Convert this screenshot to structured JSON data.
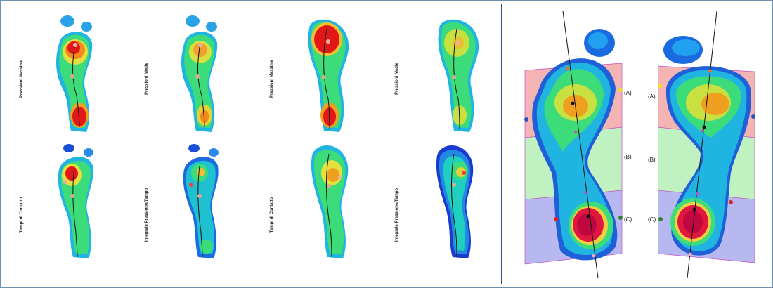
{
  "panels": [
    {
      "label": "Pressioni Massime"
    },
    {
      "label": "Pressioni Medie"
    },
    {
      "label": "Pressioni Massime"
    },
    {
      "label": "Pressioni Medie"
    },
    {
      "label": "Tempi di Contatto"
    },
    {
      "label": "Integrale Pressione/Tempo"
    },
    {
      "label": "Tempi di Contatto"
    },
    {
      "label": "Integrale Pressione/Tempo"
    }
  ],
  "zones": {
    "left_foot": [
      "(A)",
      "(B)",
      "(C)"
    ],
    "right_foot": [
      "(A)",
      "(B)",
      "(C)"
    ]
  },
  "colors": {
    "zone_a": "#f3b0b0",
    "zone_b": "#bdf0bd",
    "zone_c": "#b4b4f0",
    "divider": "#3a4f8a",
    "frame_border": "#6f8fb0"
  }
}
